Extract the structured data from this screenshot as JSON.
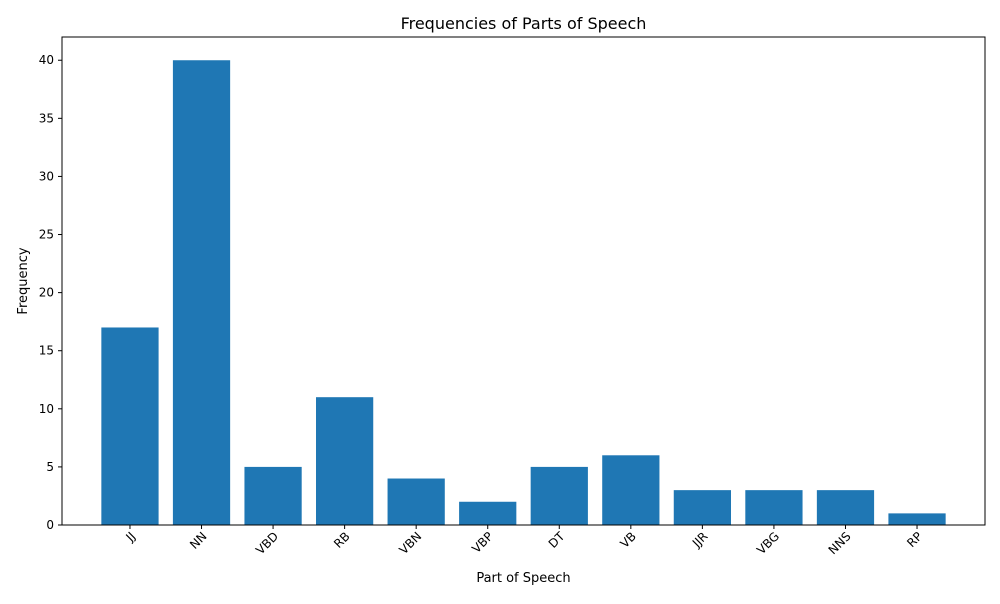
{
  "chart_data": {
    "type": "bar",
    "title": "Frequencies of Parts of Speech",
    "xlabel": "Part of Speech",
    "ylabel": "Frequency",
    "categories": [
      "JJ",
      "NN",
      "VBD",
      "RB",
      "VBN",
      "VBP",
      "DT",
      "VB",
      "JJR",
      "VBG",
      "NNS",
      "RP"
    ],
    "values": [
      17,
      40,
      5,
      11,
      4,
      2,
      5,
      6,
      3,
      3,
      3,
      1
    ],
    "ylim": [
      0,
      42
    ],
    "yticks": [
      0,
      5,
      10,
      15,
      20,
      25,
      30,
      35,
      40
    ],
    "bar_color": "#1f77b4",
    "grid": false,
    "legend": "none"
  }
}
